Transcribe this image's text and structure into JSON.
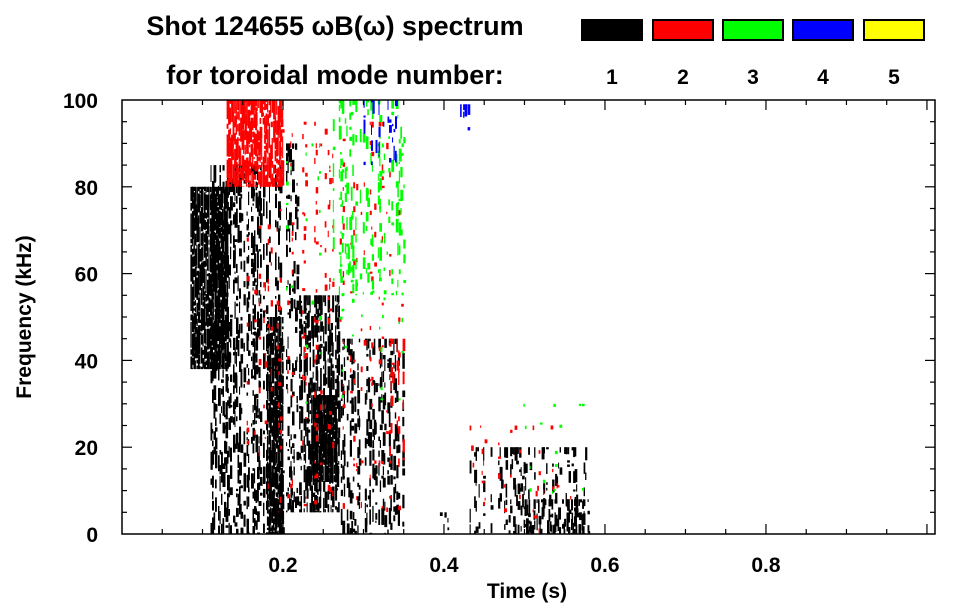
{
  "chart_data": {
    "type": "heatmap",
    "title": "Shot 124655 ωB(ω) spectrum",
    "subtitle": "for toroidal mode number:",
    "xlabel": "Time (s)",
    "ylabel": "Frequency (kHz)",
    "xlim": [
      0,
      1.01
    ],
    "ylim": [
      0,
      100
    ],
    "xticks": [
      0.2,
      0.4,
      0.6,
      0.8
    ],
    "xtick_labels": [
      "0.2",
      "0.4",
      "0.6",
      "0.8"
    ],
    "yticks": [
      0,
      20,
      40,
      60,
      80,
      100
    ],
    "ytick_labels": [
      "0",
      "20",
      "40",
      "60",
      "80",
      "100"
    ],
    "legend": [
      {
        "label": "1",
        "color": "#000000"
      },
      {
        "label": "2",
        "color": "#ff0000"
      },
      {
        "label": "3",
        "color": "#00ff00"
      },
      {
        "label": "4",
        "color": "#0000ff"
      },
      {
        "label": "5",
        "color": "#ffff00"
      }
    ],
    "legend_placement": "top-right",
    "regions": [
      {
        "mode": 1,
        "t": [
          0.085,
          0.13
        ],
        "f": [
          38,
          80
        ],
        "density": 0.9
      },
      {
        "mode": 1,
        "t": [
          0.11,
          0.2
        ],
        "f": [
          0,
          85
        ],
        "density": 0.55
      },
      {
        "mode": 1,
        "t": [
          0.18,
          0.2
        ],
        "f": [
          0,
          50
        ],
        "density": 0.9
      },
      {
        "mode": 1,
        "t": [
          0.2,
          0.22
        ],
        "f": [
          5,
          90
        ],
        "density": 0.4
      },
      {
        "mode": 1,
        "t": [
          0.22,
          0.27
        ],
        "f": [
          5,
          55
        ],
        "density": 0.7
      },
      {
        "mode": 1,
        "t": [
          0.235,
          0.265
        ],
        "f": [
          12,
          32
        ],
        "density": 0.95
      },
      {
        "mode": 1,
        "t": [
          0.27,
          0.35
        ],
        "f": [
          0,
          45
        ],
        "density": 0.5
      },
      {
        "mode": 1,
        "t": [
          0.38,
          0.43
        ],
        "f": [
          0,
          5
        ],
        "density": 0.2
      },
      {
        "mode": 1,
        "t": [
          0.43,
          0.58
        ],
        "f": [
          0,
          20
        ],
        "density": 0.4
      },
      {
        "mode": 1,
        "t": [
          0.5,
          0.58
        ],
        "f": [
          0,
          8
        ],
        "density": 0.6
      },
      {
        "mode": 2,
        "t": [
          0.13,
          0.2
        ],
        "f": [
          80,
          100
        ],
        "density": 0.8
      },
      {
        "mode": 2,
        "t": [
          0.14,
          0.35
        ],
        "f": [
          5,
          95
        ],
        "density": 0.15
      },
      {
        "mode": 2,
        "t": [
          0.33,
          0.35
        ],
        "f": [
          15,
          45
        ],
        "density": 0.4
      },
      {
        "mode": 2,
        "t": [
          0.43,
          0.57
        ],
        "f": [
          0,
          25
        ],
        "density": 0.12
      },
      {
        "mode": 3,
        "t": [
          0.26,
          0.35
        ],
        "f": [
          55,
          100
        ],
        "density": 0.4
      },
      {
        "mode": 3,
        "t": [
          0.2,
          0.35
        ],
        "f": [
          30,
          90
        ],
        "density": 0.08
      },
      {
        "mode": 3,
        "t": [
          0.48,
          0.58
        ],
        "f": [
          5,
          30
        ],
        "density": 0.05
      },
      {
        "mode": 4,
        "t": [
          0.3,
          0.34
        ],
        "f": [
          85,
          100
        ],
        "density": 0.45
      },
      {
        "mode": 4,
        "t": [
          0.42,
          0.43
        ],
        "f": [
          93,
          99
        ],
        "density": 0.4
      }
    ]
  }
}
